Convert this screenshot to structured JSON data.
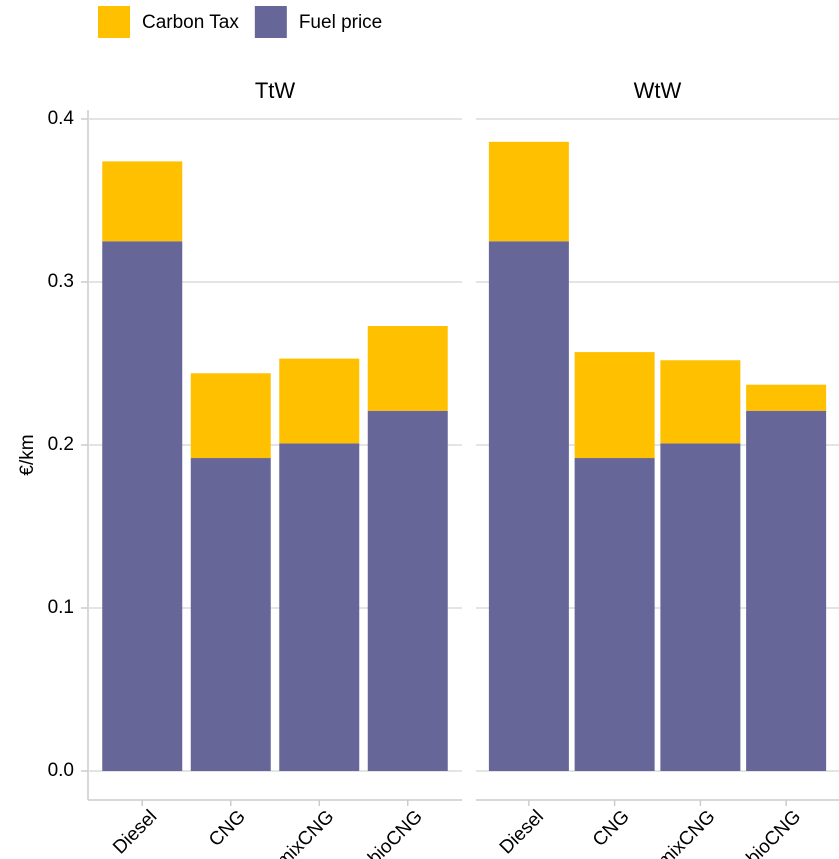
{
  "chart_data": {
    "type": "bar",
    "stacked": true,
    "ylabel": "€/km",
    "ylim": [
      0,
      0.4
    ],
    "yticks": [
      {
        "value": 0,
        "label": "0.0"
      },
      0.1,
      0.2,
      0.3,
      0.4
    ],
    "grid": true,
    "legend": "top",
    "series": [
      {
        "name": "Carbon Tax",
        "color": "#ffc000"
      },
      {
        "name": "Fuel price",
        "color": "#666699"
      }
    ],
    "facets": [
      {
        "title": "TtW",
        "categories": [
          "Diesel",
          "CNG",
          "mixCNG",
          "bioCNG"
        ],
        "series": [
          {
            "values": [
              0.049,
              0.052,
              0.052,
              0.052
            ]
          },
          {
            "values": [
              0.325,
              0.192,
              0.201,
              0.221
            ]
          }
        ]
      },
      {
        "title": "WtW",
        "categories": [
          "Diesel",
          "CNG",
          "mixCNG",
          "bioCNG"
        ],
        "series": [
          {
            "values": [
              0.061,
              0.065,
              0.051,
              0.016
            ]
          },
          {
            "values": [
              0.325,
              0.192,
              0.201,
              0.221
            ]
          }
        ]
      }
    ]
  }
}
